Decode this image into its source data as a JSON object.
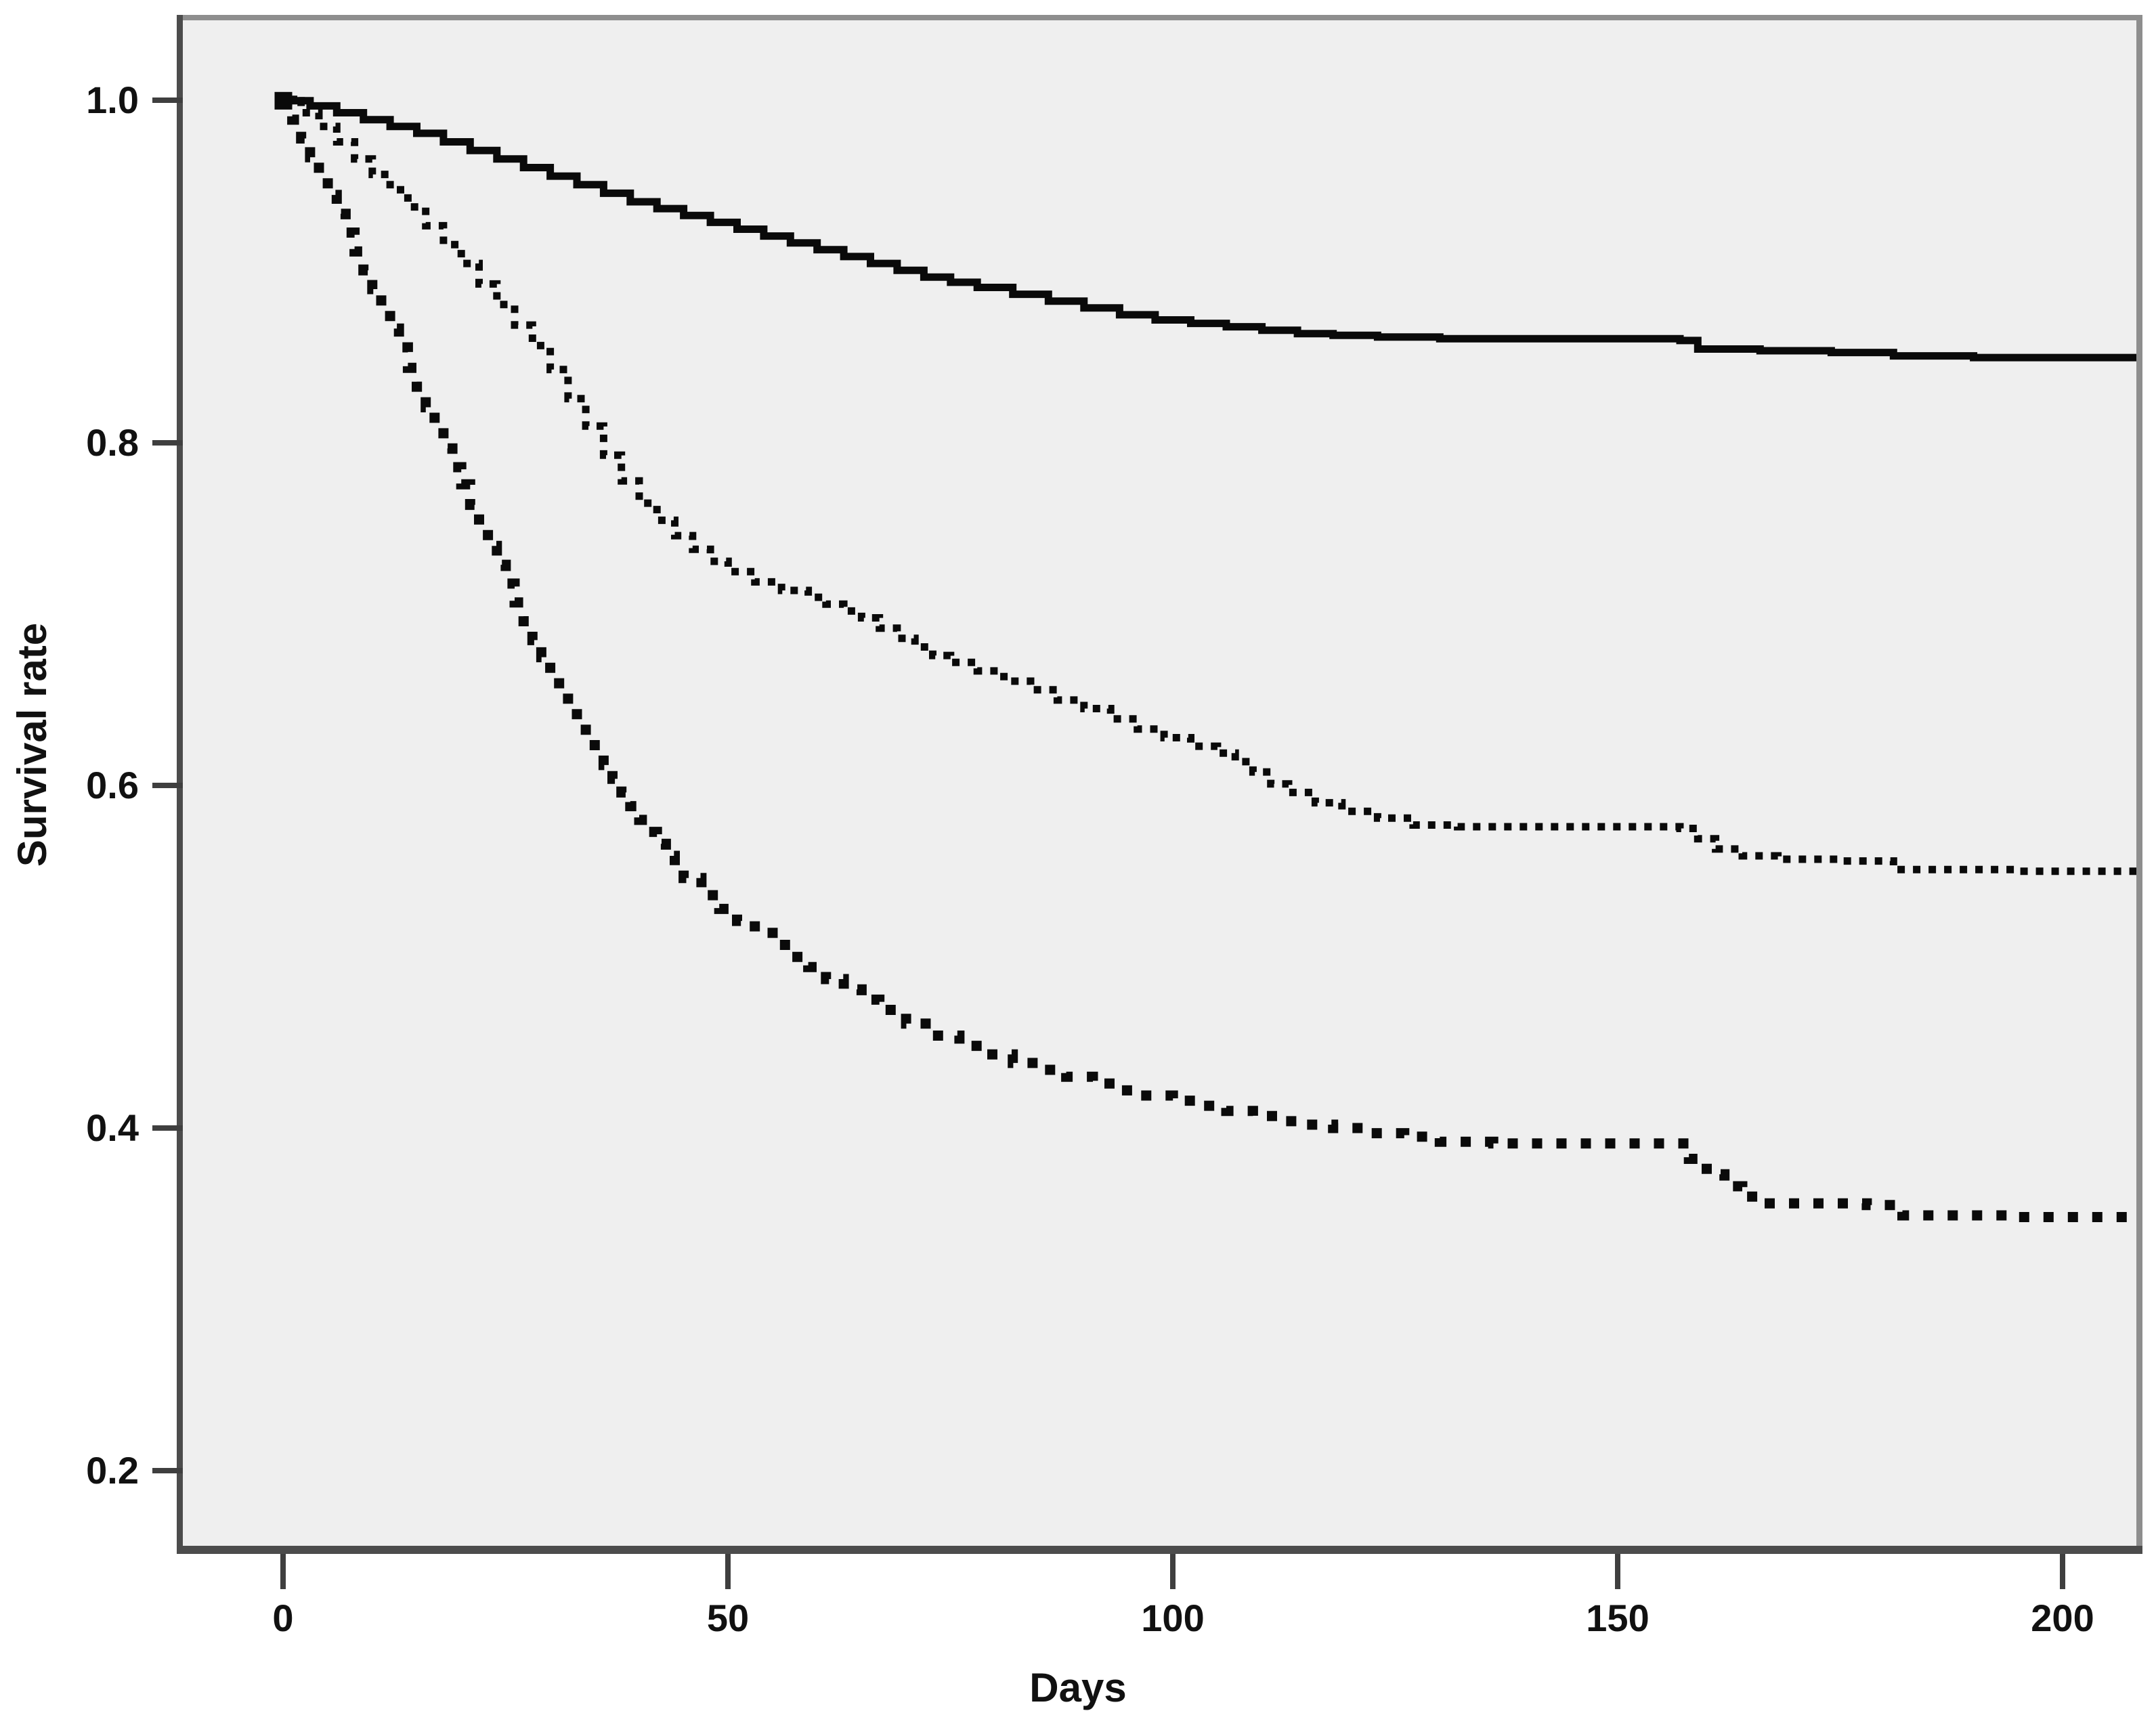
{
  "figure": {
    "background": "#ffffff",
    "plot_background": "#efefef",
    "axis_color": "#4c4c4c",
    "border_color": "#8e8e8e",
    "line_color": "#0a0a0a"
  },
  "chart_data": {
    "type": "line",
    "subtype": "kaplan_meier_survival_steps",
    "title": "",
    "xlabel": "Days",
    "ylabel": "Survival rate",
    "x_tick_labels": [
      "0",
      "50",
      "100",
      "150",
      "200"
    ],
    "x_tick_values": [
      0,
      50,
      100,
      150,
      200
    ],
    "y_tick_labels": [
      "1.0",
      "0.8",
      "0.6",
      "0.4",
      "0.2"
    ],
    "y_tick_values": [
      1.0,
      0.8,
      0.6,
      0.4,
      0.2
    ],
    "xlim": [
      -11.3,
      208.3
    ],
    "ylim": [
      0.156,
      1.047
    ],
    "grid": false,
    "legend_position": "none",
    "line_color": "#0a0a0a",
    "start_point_marker": {
      "x": 0,
      "y": 1.0,
      "size": 26
    },
    "series": [
      {
        "name": "top-solid",
        "line_style": "solid",
        "points": [
          [
            0,
            1.0
          ],
          [
            3,
            0.997
          ],
          [
            6,
            0.993
          ],
          [
            9,
            0.989
          ],
          [
            12,
            0.985
          ],
          [
            15,
            0.981
          ],
          [
            18,
            0.976
          ],
          [
            21,
            0.971
          ],
          [
            24,
            0.966
          ],
          [
            27,
            0.961
          ],
          [
            30,
            0.956
          ],
          [
            33,
            0.951
          ],
          [
            36,
            0.946
          ],
          [
            39,
            0.941
          ],
          [
            42,
            0.937
          ],
          [
            45,
            0.933
          ],
          [
            48,
            0.929
          ],
          [
            51,
            0.925
          ],
          [
            54,
            0.921
          ],
          [
            57,
            0.917
          ],
          [
            60,
            0.913
          ],
          [
            63,
            0.909
          ],
          [
            66,
            0.905
          ],
          [
            69,
            0.901
          ],
          [
            72,
            0.897
          ],
          [
            75,
            0.894
          ],
          [
            78,
            0.891
          ],
          [
            82,
            0.887
          ],
          [
            86,
            0.883
          ],
          [
            90,
            0.879
          ],
          [
            94,
            0.875
          ],
          [
            98,
            0.872
          ],
          [
            102,
            0.87
          ],
          [
            106,
            0.868
          ],
          [
            110,
            0.866
          ],
          [
            114,
            0.864
          ],
          [
            118,
            0.863
          ],
          [
            123,
            0.862
          ],
          [
            130,
            0.861
          ],
          [
            140,
            0.861
          ],
          [
            150,
            0.861
          ],
          [
            157,
            0.86
          ],
          [
            159,
            0.855
          ],
          [
            166,
            0.854
          ],
          [
            174,
            0.853
          ],
          [
            181,
            0.851
          ],
          [
            190,
            0.85
          ],
          [
            208,
            0.85
          ]
        ]
      },
      {
        "name": "middle-dotted",
        "line_style": "dotted_fine",
        "points": [
          [
            0,
            1.0
          ],
          [
            2,
            0.993
          ],
          [
            4,
            0.985
          ],
          [
            6,
            0.976
          ],
          [
            8,
            0.966
          ],
          [
            10,
            0.957
          ],
          [
            12,
            0.948
          ],
          [
            14,
            0.938
          ],
          [
            16,
            0.927
          ],
          [
            18,
            0.916
          ],
          [
            20,
            0.905
          ],
          [
            22,
            0.893
          ],
          [
            24,
            0.881
          ],
          [
            26,
            0.869
          ],
          [
            28,
            0.857
          ],
          [
            30,
            0.843
          ],
          [
            32,
            0.826
          ],
          [
            34,
            0.81
          ],
          [
            36,
            0.793
          ],
          [
            38,
            0.778
          ],
          [
            40,
            0.765
          ],
          [
            42,
            0.755
          ],
          [
            44,
            0.746
          ],
          [
            46,
            0.738
          ],
          [
            48,
            0.731
          ],
          [
            50,
            0.725
          ],
          [
            53,
            0.719
          ],
          [
            56,
            0.714
          ],
          [
            59,
            0.71
          ],
          [
            61,
            0.706
          ],
          [
            63,
            0.702
          ],
          [
            65,
            0.698
          ],
          [
            67,
            0.692
          ],
          [
            69,
            0.686
          ],
          [
            71,
            0.681
          ],
          [
            73,
            0.676
          ],
          [
            75,
            0.672
          ],
          [
            78,
            0.667
          ],
          [
            81,
            0.661
          ],
          [
            84,
            0.656
          ],
          [
            87,
            0.65
          ],
          [
            90,
            0.645
          ],
          [
            93,
            0.639
          ],
          [
            96,
            0.633
          ],
          [
            99,
            0.628
          ],
          [
            102,
            0.623
          ],
          [
            105,
            0.619
          ],
          [
            107,
            0.614
          ],
          [
            109,
            0.608
          ],
          [
            111,
            0.601
          ],
          [
            113,
            0.596
          ],
          [
            116,
            0.59
          ],
          [
            119,
            0.585
          ],
          [
            123,
            0.581
          ],
          [
            127,
            0.577
          ],
          [
            132,
            0.576
          ],
          [
            145,
            0.576
          ],
          [
            157,
            0.575
          ],
          [
            159,
            0.569
          ],
          [
            161,
            0.563
          ],
          [
            164,
            0.559
          ],
          [
            168,
            0.557
          ],
          [
            175,
            0.556
          ],
          [
            181,
            0.551
          ],
          [
            195,
            0.55
          ],
          [
            208,
            0.55
          ]
        ]
      },
      {
        "name": "bottom-dotted",
        "line_style": "dotted_coarse",
        "points": [
          [
            0,
            1.0
          ],
          [
            1,
            0.989
          ],
          [
            2,
            0.978
          ],
          [
            3,
            0.967
          ],
          [
            4,
            0.956
          ],
          [
            5,
            0.945
          ],
          [
            6,
            0.934
          ],
          [
            7,
            0.923
          ],
          [
            8,
            0.912
          ],
          [
            9,
            0.901
          ],
          [
            10,
            0.89
          ],
          [
            11,
            0.879
          ],
          [
            12,
            0.867
          ],
          [
            13,
            0.856
          ],
          [
            14,
            0.844
          ],
          [
            15,
            0.833
          ],
          [
            16,
            0.821
          ],
          [
            17,
            0.809
          ],
          [
            18,
            0.797
          ],
          [
            19,
            0.786
          ],
          [
            20,
            0.776
          ],
          [
            21,
            0.764
          ],
          [
            22,
            0.752
          ],
          [
            23,
            0.74
          ],
          [
            24,
            0.729
          ],
          [
            25,
            0.718
          ],
          [
            26,
            0.707
          ],
          [
            27,
            0.696
          ],
          [
            28,
            0.685
          ],
          [
            29,
            0.675
          ],
          [
            30,
            0.665
          ],
          [
            31,
            0.656
          ],
          [
            32,
            0.647
          ],
          [
            33,
            0.638
          ],
          [
            34,
            0.629
          ],
          [
            35,
            0.62
          ],
          [
            36,
            0.612
          ],
          [
            37,
            0.604
          ],
          [
            38,
            0.596
          ],
          [
            39,
            0.588
          ],
          [
            40,
            0.58
          ],
          [
            41,
            0.573
          ],
          [
            42,
            0.566
          ],
          [
            43,
            0.559
          ],
          [
            44,
            0.552
          ],
          [
            45,
            0.546
          ],
          [
            47,
            0.536
          ],
          [
            49,
            0.528
          ],
          [
            51,
            0.521
          ],
          [
            53,
            0.514
          ],
          [
            55,
            0.507
          ],
          [
            57,
            0.5
          ],
          [
            59,
            0.494
          ],
          [
            61,
            0.487
          ],
          [
            63,
            0.481
          ],
          [
            65,
            0.475
          ],
          [
            67,
            0.469
          ],
          [
            70,
            0.461
          ],
          [
            73,
            0.454
          ],
          [
            76,
            0.448
          ],
          [
            79,
            0.443
          ],
          [
            82,
            0.438
          ],
          [
            85,
            0.434
          ],
          [
            88,
            0.43
          ],
          [
            91,
            0.426
          ],
          [
            94,
            0.422
          ],
          [
            97,
            0.419
          ],
          [
            100,
            0.416
          ],
          [
            103,
            0.413
          ],
          [
            106,
            0.41
          ],
          [
            109,
            0.407
          ],
          [
            112,
            0.404
          ],
          [
            115,
            0.402
          ],
          [
            118,
            0.4
          ],
          [
            122,
            0.397
          ],
          [
            126,
            0.395
          ],
          [
            130,
            0.392
          ],
          [
            136,
            0.391
          ],
          [
            148,
            0.391
          ],
          [
            157,
            0.391
          ],
          [
            158,
            0.382
          ],
          [
            160,
            0.373
          ],
          [
            162,
            0.366
          ],
          [
            164,
            0.36
          ],
          [
            166,
            0.356
          ],
          [
            172,
            0.356
          ],
          [
            178,
            0.355
          ],
          [
            182,
            0.349
          ],
          [
            195,
            0.348
          ],
          [
            208,
            0.348
          ]
        ]
      }
    ]
  }
}
